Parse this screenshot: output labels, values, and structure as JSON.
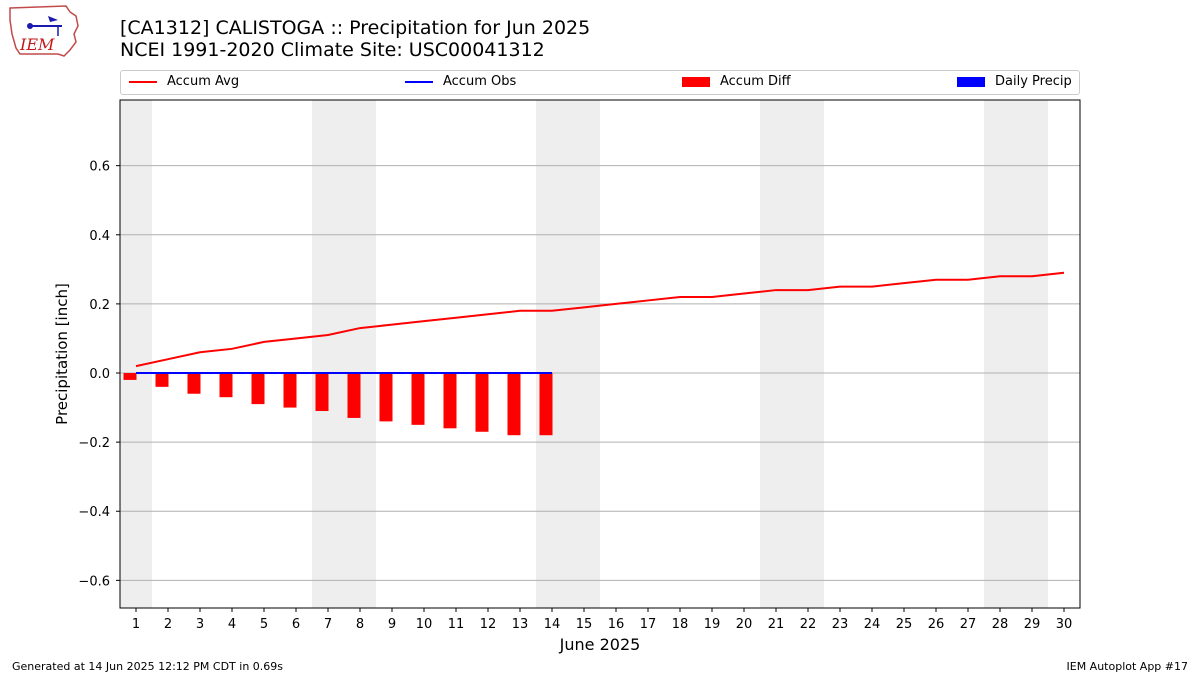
{
  "header": {
    "title_line1": "[CA1312] CALISTOGA :: Precipitation for Jun 2025",
    "title_line2": "NCEI 1991-2020 Climate Site: USC00041312",
    "logo_text": "IEM"
  },
  "legend": {
    "items": [
      {
        "label": "Accum Avg",
        "color": "#ff0000",
        "kind": "line"
      },
      {
        "label": "Accum Obs",
        "color": "#0000ff",
        "kind": "line"
      },
      {
        "label": "Accum Diff",
        "color": "#ff0000",
        "kind": "box"
      },
      {
        "label": "Daily Precip",
        "color": "#0000ff",
        "kind": "box"
      }
    ]
  },
  "footer": {
    "left": "Generated at 14 Jun 2025 12:12 PM CDT in 0.69s",
    "right": "IEM Autoplot App #17"
  },
  "chart_data": {
    "type": "line",
    "title": "[CA1312] CALISTOGA :: Precipitation for Jun 2025",
    "subtitle": "NCEI 1991-2020 Climate Site: USC00041312",
    "xlabel": "June 2025",
    "ylabel": "Precipitation [inch]",
    "x": [
      1,
      2,
      3,
      4,
      5,
      6,
      7,
      8,
      9,
      10,
      11,
      12,
      13,
      14,
      15,
      16,
      17,
      18,
      19,
      20,
      21,
      22,
      23,
      24,
      25,
      26,
      27,
      28,
      29,
      30
    ],
    "xlim": [
      0.5,
      30.5
    ],
    "ylim": [
      -0.68,
      0.79
    ],
    "yticks": [
      -0.6,
      -0.4,
      -0.2,
      0.0,
      0.2,
      0.4,
      0.6
    ],
    "ytick_labels": [
      "−0.6",
      "−0.4",
      "−0.2",
      "0.0",
      "0.2",
      "0.4",
      "0.6"
    ],
    "grid": "horizontal",
    "weekend_shading": [
      [
        0.5,
        1.5
      ],
      [
        6.5,
        8.5
      ],
      [
        13.5,
        15.5
      ],
      [
        20.5,
        22.5
      ],
      [
        27.5,
        29.5
      ]
    ],
    "series": [
      {
        "name": "Accum Avg",
        "kind": "line",
        "color": "#ff0000",
        "x": [
          1,
          2,
          3,
          4,
          5,
          6,
          7,
          8,
          9,
          10,
          11,
          12,
          13,
          14,
          15,
          16,
          17,
          18,
          19,
          20,
          21,
          22,
          23,
          24,
          25,
          26,
          27,
          28,
          29,
          30
        ],
        "values": [
          0.02,
          0.04,
          0.06,
          0.07,
          0.09,
          0.1,
          0.11,
          0.13,
          0.14,
          0.15,
          0.16,
          0.17,
          0.18,
          0.18,
          0.19,
          0.2,
          0.21,
          0.22,
          0.22,
          0.23,
          0.24,
          0.24,
          0.25,
          0.25,
          0.26,
          0.27,
          0.27,
          0.28,
          0.28,
          0.29
        ]
      },
      {
        "name": "Accum Obs",
        "kind": "line",
        "color": "#0000ff",
        "x": [
          1,
          2,
          3,
          4,
          5,
          6,
          7,
          8,
          9,
          10,
          11,
          12,
          13,
          14
        ],
        "values": [
          0,
          0,
          0,
          0,
          0,
          0,
          0,
          0,
          0,
          0,
          0,
          0,
          0,
          0
        ]
      },
      {
        "name": "Accum Diff",
        "kind": "bar",
        "color": "#ff0000",
        "x": [
          1,
          2,
          3,
          4,
          5,
          6,
          7,
          8,
          9,
          10,
          11,
          12,
          13,
          14
        ],
        "values": [
          -0.02,
          -0.04,
          -0.06,
          -0.07,
          -0.09,
          -0.1,
          -0.11,
          -0.13,
          -0.14,
          -0.15,
          -0.16,
          -0.17,
          -0.18,
          -0.18
        ]
      },
      {
        "name": "Daily Precip",
        "kind": "bar",
        "color": "#0000ff",
        "x": [
          1,
          2,
          3,
          4,
          5,
          6,
          7,
          8,
          9,
          10,
          11,
          12,
          13,
          14
        ],
        "values": [
          0,
          0,
          0,
          0,
          0,
          0,
          0,
          0,
          0,
          0,
          0,
          0,
          0,
          0
        ]
      }
    ]
  }
}
